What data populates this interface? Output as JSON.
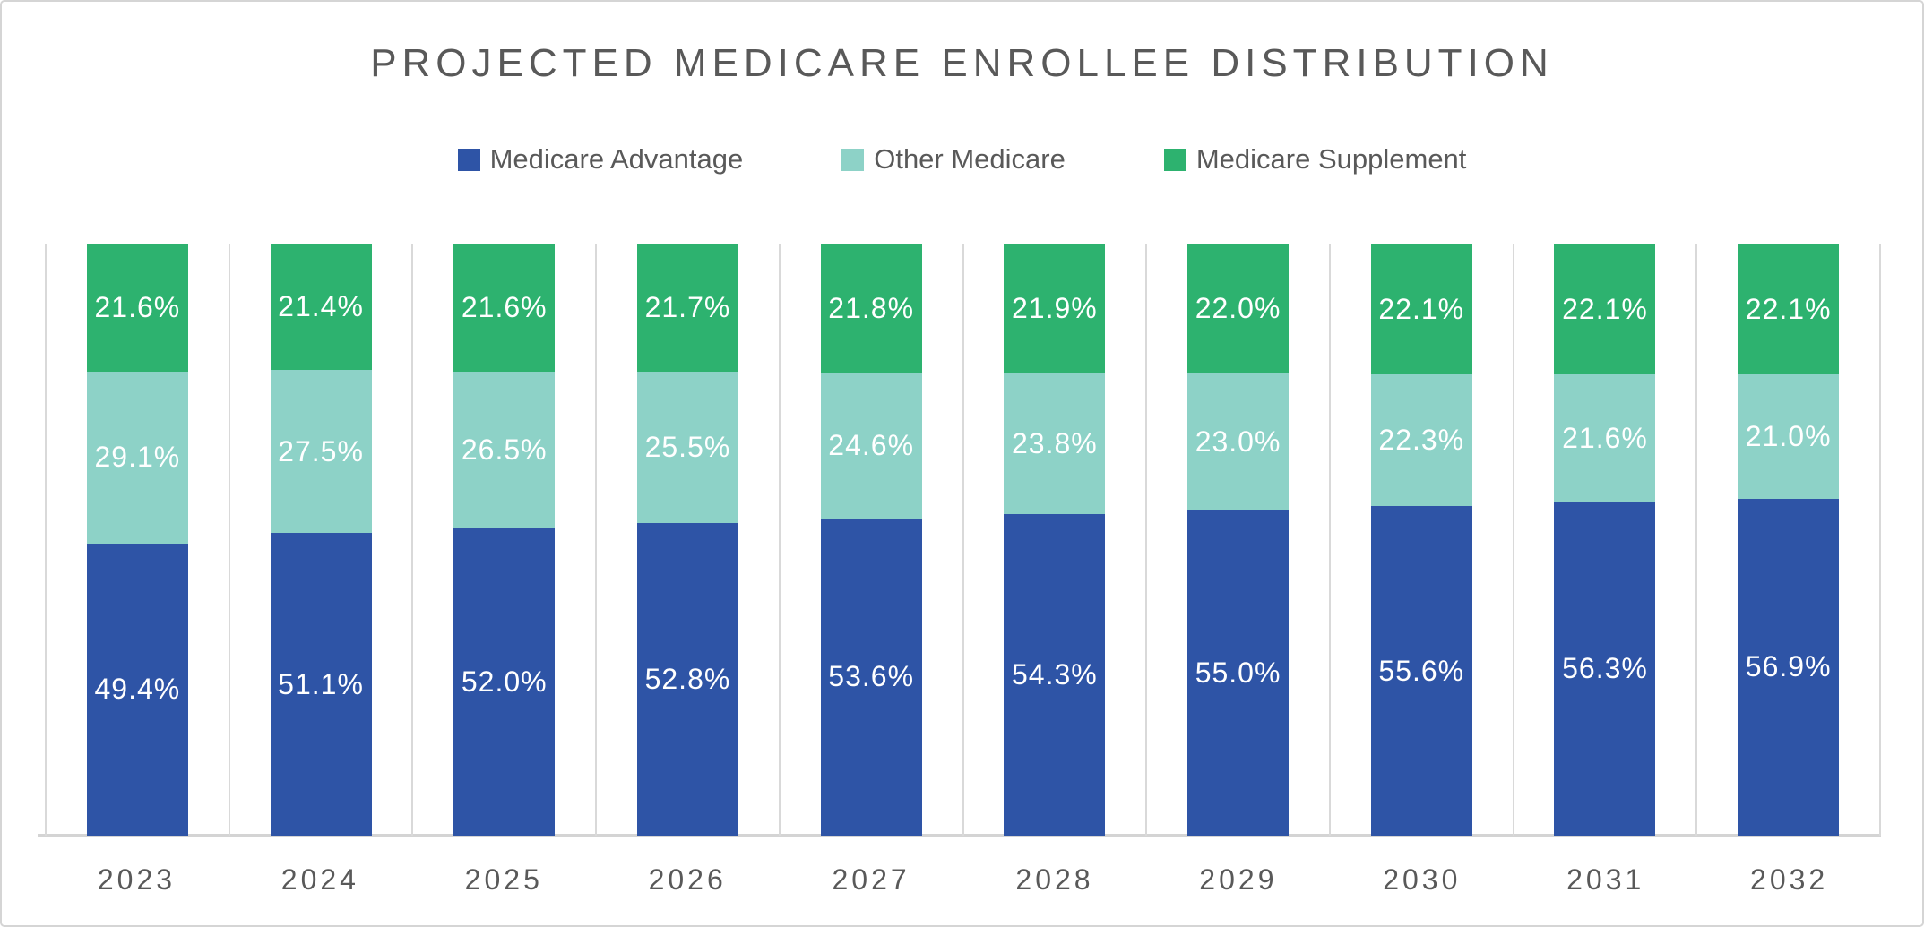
{
  "title": "PROJECTED MEDICARE ENROLLEE DISTRIBUTION",
  "colors": {
    "text": "#595959",
    "gridline": "#d9d9d9",
    "baseline": "#d4d4d4",
    "card_border": "#d5d5d5",
    "background": "#ffffff",
    "value_label": "#ffffff",
    "medicare_advantage": "#2e54a6",
    "other_medicare": "#8dd2c7",
    "medicare_supplement": "#2db26f"
  },
  "chart_data": {
    "type": "bar",
    "stacked": true,
    "percent_stacked": true,
    "unit": "%",
    "title": "PROJECTED MEDICARE ENROLLEE DISTRIBUTION",
    "xlabel": "",
    "ylabel": "",
    "ylim": [
      0,
      100
    ],
    "grid": "vertical-category-boundaries",
    "legend_position": "top",
    "value_labels": "inside-center, one decimal, percent sign",
    "categories": [
      "2023",
      "2024",
      "2025",
      "2026",
      "2027",
      "2028",
      "2029",
      "2030",
      "2031",
      "2032"
    ],
    "series": [
      {
        "name": "Medicare Advantage",
        "color": "#2e54a6",
        "stack_position": "bottom",
        "values": [
          49.4,
          51.1,
          52.0,
          52.8,
          53.6,
          54.3,
          55.0,
          55.6,
          56.3,
          56.9
        ]
      },
      {
        "name": "Other Medicare",
        "color": "#8dd2c7",
        "stack_position": "middle",
        "values": [
          29.1,
          27.5,
          26.5,
          25.5,
          24.6,
          23.8,
          23.0,
          22.3,
          21.6,
          21.0
        ]
      },
      {
        "name": "Medicare Supplement",
        "color": "#2db26f",
        "stack_position": "top",
        "values": [
          21.6,
          21.4,
          21.6,
          21.7,
          21.8,
          21.9,
          22.0,
          22.1,
          22.1,
          22.1
        ]
      }
    ]
  }
}
